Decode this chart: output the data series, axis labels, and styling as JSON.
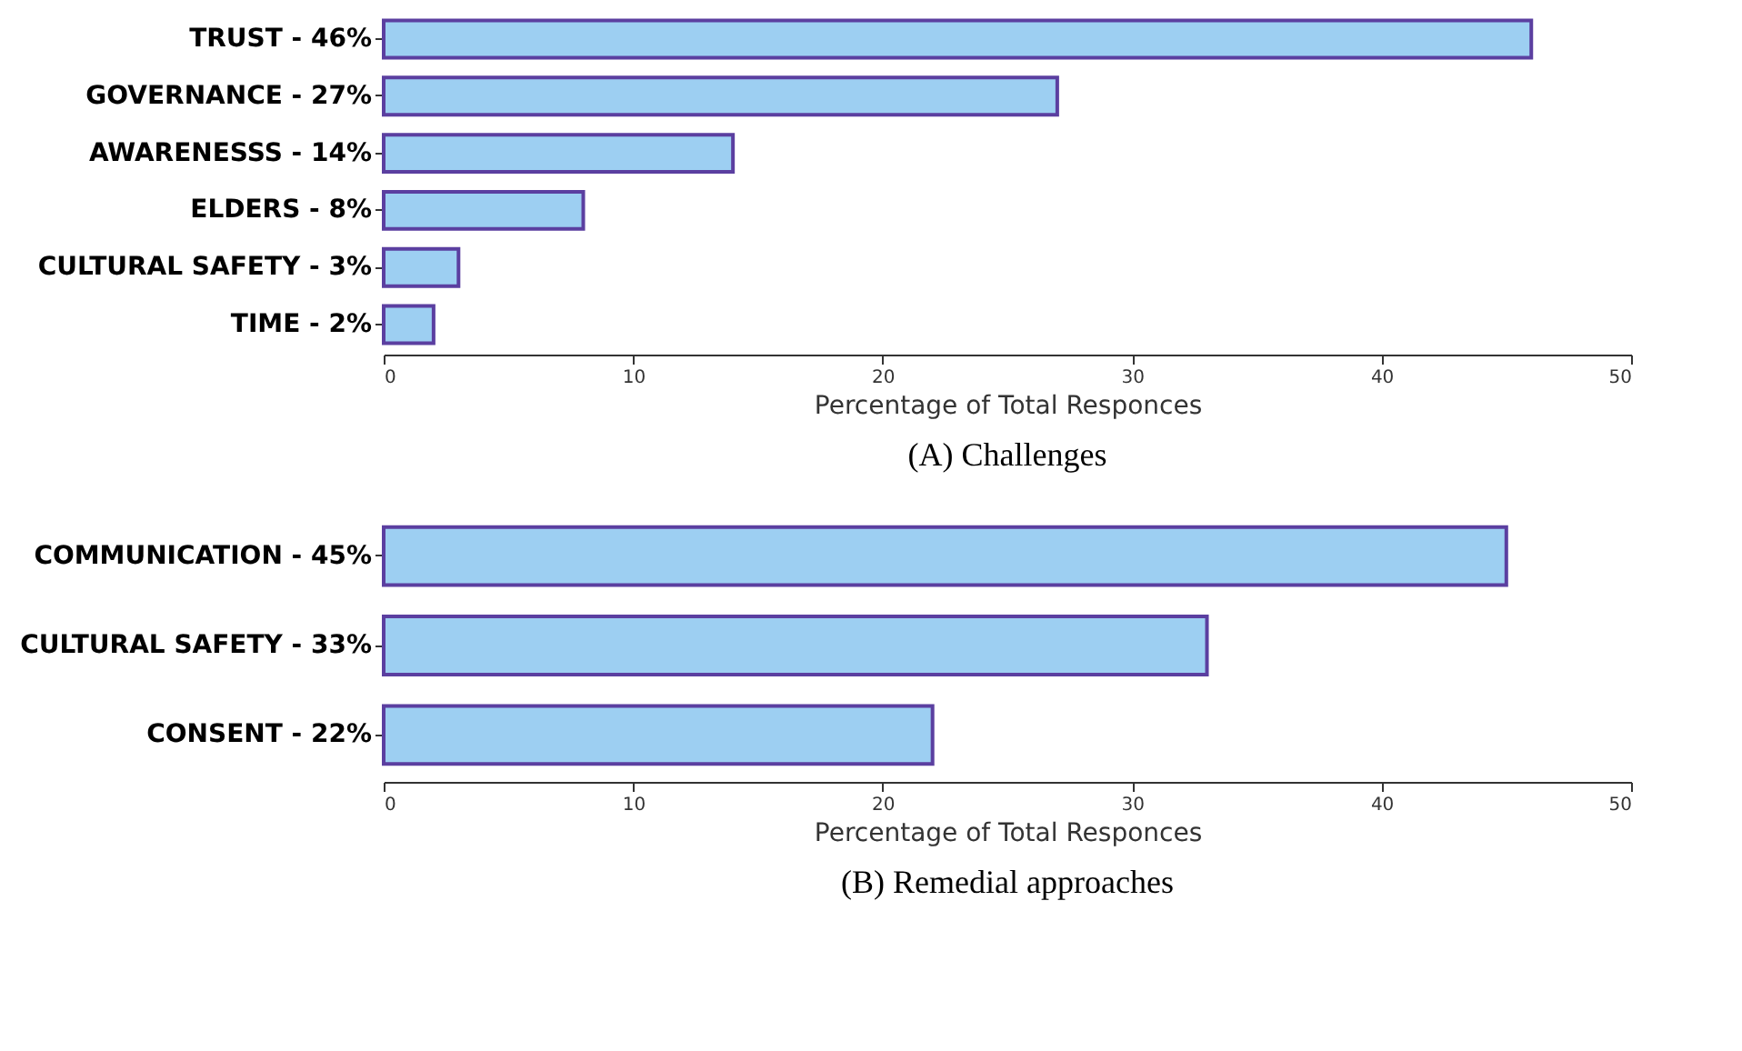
{
  "chart_data": [
    {
      "type": "bar",
      "orientation": "horizontal",
      "title": "(A) Challenges",
      "xlabel": "Percentage of Total Responces",
      "categories": [
        "TRUST - 46%",
        "GOVERNANCE - 27%",
        "AWARENESSS - 14%",
        "ELDERS - 8%",
        "CULTURAL SAFETY - 3%",
        "TIME - 2%"
      ],
      "values": [
        46,
        27,
        14,
        8,
        3,
        2
      ],
      "color": "#9dcff2",
      "xlim": [
        0,
        50
      ],
      "xticks": [
        0,
        10,
        20,
        30,
        40,
        50
      ],
      "grid": false
    },
    {
      "type": "bar",
      "orientation": "horizontal",
      "title": "(B) Remedial approaches",
      "xlabel": "Percentage of Total Responces",
      "categories": [
        "COMMUNICATION - 45%",
        "CULTURAL SAFETY -  33%",
        "CONSENT - 22%"
      ],
      "values": [
        45,
        33,
        22
      ],
      "color": "#9dcff2",
      "xlim": [
        0,
        50
      ],
      "xticks": [
        0,
        10,
        20,
        30,
        40,
        50
      ],
      "grid": false
    }
  ]
}
